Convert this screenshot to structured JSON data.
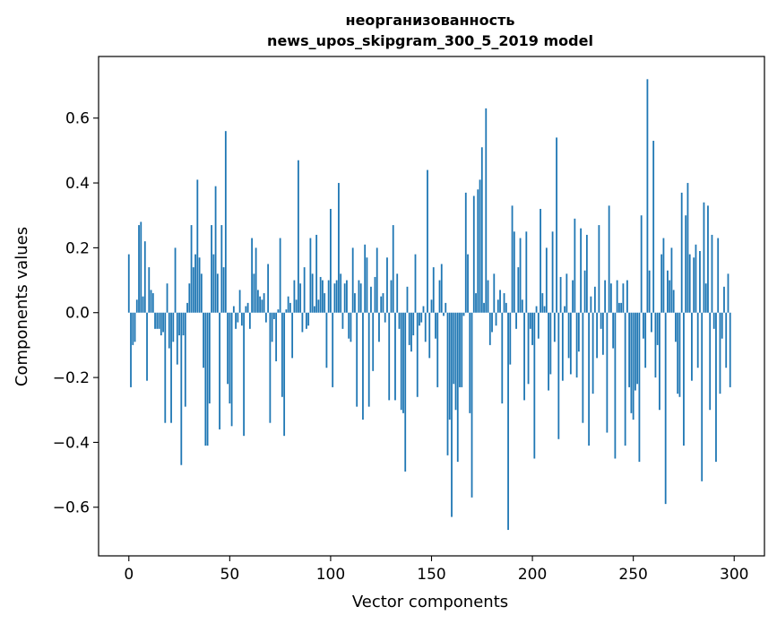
{
  "chart_data": {
    "type": "bar",
    "title_line1": "неорганизованность",
    "title_line2": "news_upos_skipgram_300_5_2019 model",
    "xlabel": "Vector components",
    "ylabel": "Components values",
    "xlim": [
      -15,
      315
    ],
    "ylim": [
      -0.75,
      0.79
    ],
    "xticks": [
      0,
      50,
      100,
      150,
      200,
      250,
      300
    ],
    "xtick_labels": [
      "0",
      "50",
      "100",
      "150",
      "200",
      "250",
      "300"
    ],
    "yticks": [
      -0.6,
      -0.4,
      -0.2,
      0.0,
      0.2,
      0.4,
      0.6
    ],
    "ytick_labels": [
      "−0.6",
      "−0.4",
      "−0.2",
      "0.0",
      "0.2",
      "0.4",
      "0.6"
    ],
    "bar_color": "#1f77b4",
    "grid": false,
    "legend": "none",
    "values": [
      0.18,
      -0.23,
      -0.1,
      -0.09,
      0.04,
      0.27,
      0.28,
      0.05,
      0.22,
      -0.21,
      0.14,
      0.07,
      0.06,
      -0.05,
      -0.05,
      -0.05,
      -0.07,
      -0.06,
      -0.34,
      0.09,
      -0.11,
      -0.34,
      -0.09,
      0.2,
      -0.16,
      -0.07,
      -0.47,
      -0.07,
      -0.29,
      0.03,
      0.09,
      0.27,
      0.14,
      0.18,
      0.41,
      0.17,
      0.12,
      -0.17,
      -0.41,
      -0.41,
      -0.28,
      0.27,
      0.18,
      0.39,
      0.12,
      -0.36,
      0.27,
      0.14,
      0.56,
      -0.22,
      -0.28,
      -0.35,
      0.02,
      -0.05,
      -0.03,
      0.07,
      -0.04,
      -0.38,
      0.02,
      0.03,
      -0.05,
      0.23,
      0.12,
      0.2,
      0.07,
      0.05,
      0.04,
      0.06,
      -0.03,
      0.15,
      -0.34,
      -0.09,
      -0.02,
      -0.15,
      0.01,
      0.23,
      -0.26,
      -0.38,
      0.01,
      0.05,
      0.03,
      -0.14,
      0.1,
      0.04,
      0.47,
      0.09,
      -0.06,
      0.14,
      -0.05,
      -0.04,
      0.23,
      0.12,
      0.02,
      0.24,
      0.04,
      0.11,
      0.1,
      0.06,
      -0.17,
      0.1,
      0.32,
      -0.23,
      0.09,
      0.1,
      0.4,
      0.12,
      -0.05,
      0.09,
      0.1,
      -0.08,
      -0.09,
      0.2,
      0.06,
      -0.29,
      0.1,
      0.09,
      -0.33,
      0.21,
      0.17,
      -0.29,
      0.08,
      -0.18,
      0.11,
      0.2,
      -0.09,
      0.05,
      0.06,
      -0.03,
      0.17,
      -0.27,
      0.1,
      0.27,
      -0.27,
      0.12,
      -0.05,
      -0.3,
      -0.31,
      -0.49,
      0.08,
      -0.1,
      -0.12,
      -0.07,
      0.18,
      -0.26,
      -0.04,
      -0.03,
      0.02,
      -0.09,
      0.44,
      -0.14,
      0.04,
      0.14,
      -0.08,
      -0.23,
      0.1,
      0.15,
      -0.01,
      0.03,
      -0.44,
      -0.33,
      -0.63,
      -0.22,
      -0.3,
      -0.46,
      -0.23,
      -0.23,
      -0.01,
      0.37,
      0.18,
      -0.31,
      -0.57,
      0.36,
      0.06,
      0.38,
      0.41,
      0.51,
      0.03,
      0.63,
      0.1,
      -0.1,
      -0.06,
      0.12,
      -0.04,
      0.04,
      0.07,
      -0.28,
      0.06,
      0.03,
      -0.67,
      -0.16,
      0.33,
      0.25,
      -0.05,
      0.14,
      0.23,
      0.04,
      -0.27,
      0.25,
      -0.22,
      -0.05,
      -0.1,
      -0.45,
      0.02,
      -0.08,
      0.32,
      0.06,
      0.02,
      0.2,
      -0.24,
      -0.19,
      0.25,
      -0.09,
      0.54,
      -0.39,
      0.11,
      -0.21,
      0.02,
      0.12,
      -0.14,
      -0.19,
      0.1,
      0.29,
      -0.2,
      -0.12,
      0.26,
      -0.34,
      0.13,
      0.24,
      -0.41,
      0.05,
      -0.25,
      0.08,
      -0.14,
      0.27,
      -0.05,
      -0.13,
      0.1,
      -0.37,
      0.33,
      0.09,
      -0.11,
      -0.45,
      0.1,
      0.03,
      0.03,
      0.09,
      -0.41,
      0.1,
      -0.23,
      -0.31,
      -0.33,
      -0.24,
      -0.22,
      -0.46,
      0.3,
      -0.08,
      -0.17,
      0.72,
      0.13,
      -0.06,
      0.53,
      -0.2,
      -0.1,
      -0.3,
      0.18,
      0.23,
      -0.59,
      0.13,
      0.1,
      0.2,
      0.07,
      -0.09,
      -0.25,
      -0.26,
      0.37,
      -0.41,
      0.3,
      0.4,
      0.18,
      -0.21,
      0.17,
      0.21,
      -0.17,
      0.19,
      -0.52,
      0.34,
      0.09,
      0.33,
      -0.3,
      0.24,
      -0.05,
      -0.46,
      0.23,
      -0.25,
      -0.08,
      0.08,
      -0.17,
      0.12,
      -0.23
    ]
  }
}
